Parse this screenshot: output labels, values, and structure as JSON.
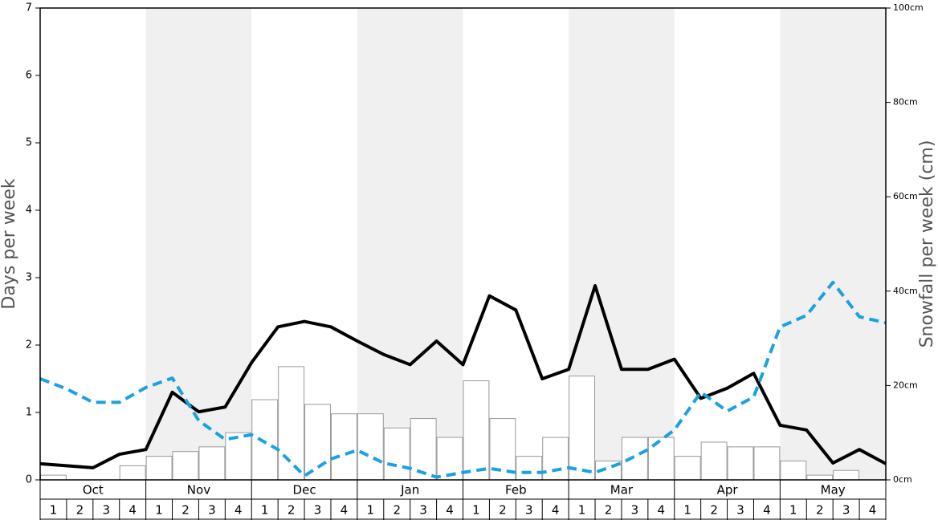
{
  "chart_data": {
    "type": "bar",
    "ylabel": "Days per week",
    "y2label": "Snowfall per week (cm)",
    "ylim": [
      0,
      7
    ],
    "yticks": [
      0,
      1,
      2,
      3,
      4,
      5,
      6,
      7
    ],
    "y2lim": [
      0,
      100
    ],
    "y2ticks": [
      {
        "value": 0,
        "label": "0cm"
      },
      {
        "value": 20,
        "label": "20cm"
      },
      {
        "value": 40,
        "label": "40cm"
      },
      {
        "value": 60,
        "label": "60cm"
      },
      {
        "value": 80,
        "label": "80cm"
      },
      {
        "value": 100,
        "label": "100cm"
      }
    ],
    "months": [
      "Oct",
      "Nov",
      "Dec",
      "Jan",
      "Feb",
      "Mar",
      "Apr",
      "May"
    ],
    "weeks": [
      1,
      2,
      3,
      4
    ],
    "series": [
      {
        "type": "bar",
        "axis": "y2",
        "color": "#ffffff",
        "edge": "#999999",
        "values": [
          1,
          0,
          0,
          3,
          5,
          6,
          7,
          10,
          17,
          24,
          16,
          14,
          14,
          11,
          13,
          9,
          21,
          13,
          5,
          9,
          22,
          4,
          9,
          9,
          5,
          8,
          7,
          7,
          4,
          1,
          2,
          0
        ]
      },
      {
        "type": "line",
        "axis": "y",
        "color": "#000000",
        "dashed": false,
        "values": [
          0.24,
          0.21,
          0.18,
          0.38,
          0.45,
          1.3,
          1.01,
          1.08,
          1.74,
          2.27,
          2.35,
          2.27,
          2.06,
          1.86,
          1.71,
          2.06,
          1.71,
          2.73,
          2.52,
          1.5,
          1.64,
          2.88,
          1.64,
          1.64,
          1.79,
          1.21,
          1.36,
          1.58,
          0.81,
          0.74,
          0.25,
          0.45,
          0.24
        ]
      },
      {
        "type": "line",
        "axis": "y",
        "color": "#1ba1e2",
        "dashed": true,
        "values": [
          1.5,
          1.35,
          1.15,
          1.15,
          1.37,
          1.51,
          0.88,
          0.6,
          0.67,
          0.45,
          0.06,
          0.31,
          0.44,
          0.25,
          0.17,
          0.04,
          0.11,
          0.17,
          0.11,
          0.11,
          0.18,
          0.11,
          0.25,
          0.45,
          0.74,
          1.3,
          1.02,
          1.23,
          2.27,
          2.44,
          2.93,
          2.42,
          2.33
        ]
      }
    ]
  }
}
